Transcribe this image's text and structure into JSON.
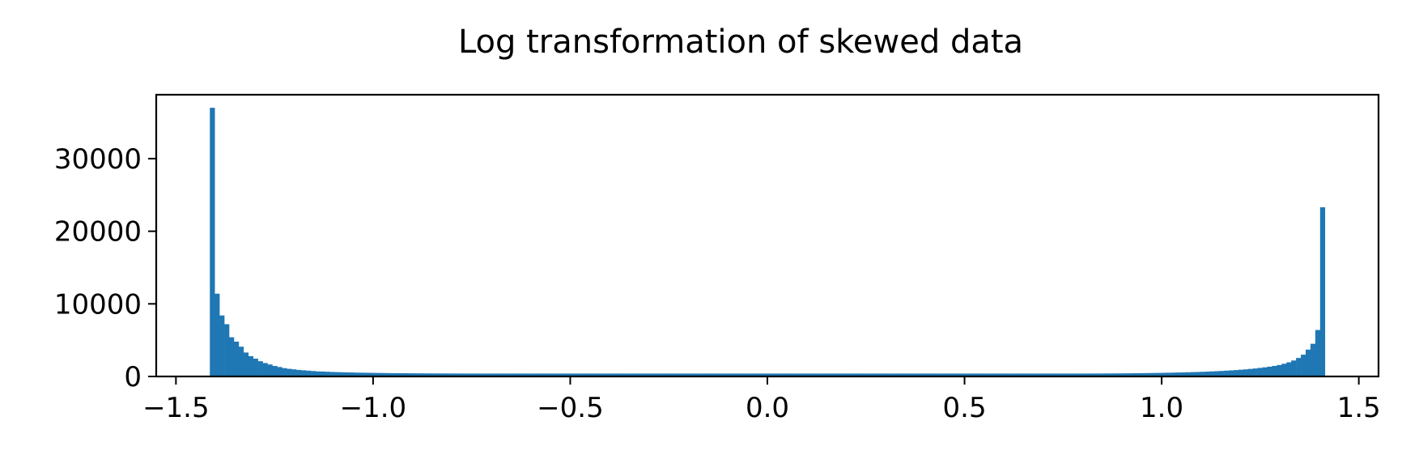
{
  "chart_data": {
    "type": "bar",
    "title": "Log transformation of skewed data",
    "xlabel": "",
    "ylabel": "",
    "xlim": [
      -1.55,
      1.55
    ],
    "ylim": [
      0,
      38800
    ],
    "xticks": [
      -1.5,
      -1.0,
      -0.5,
      0.0,
      0.5,
      1.0,
      1.5
    ],
    "xtick_labels": [
      "−1.5",
      "−1.0",
      "−0.5",
      "0.0",
      "0.5",
      "1.0",
      "1.5"
    ],
    "yticks": [
      0,
      10000,
      20000,
      30000
    ],
    "ytick_labels": [
      "0",
      "10000",
      "20000",
      "30000"
    ],
    "grid": false,
    "bar_color": "#1f77b4",
    "series": [
      {
        "bin_start": -1.414,
        "bin_end": 1.414,
        "values": [
          37000,
          11400,
          8400,
          7200,
          5400,
          4800,
          4100,
          3300,
          2800,
          2450,
          2100,
          1850,
          1650,
          1450,
          1300,
          1150,
          1050,
          980,
          900,
          850,
          800,
          750,
          700,
          680,
          650,
          620,
          600,
          580,
          560,
          550,
          530,
          520,
          510,
          500,
          490,
          480,
          470,
          460,
          455,
          450,
          445,
          440,
          435,
          430,
          425,
          420,
          418,
          415,
          412,
          410,
          408,
          406,
          404,
          402,
          400,
          400,
          400,
          400,
          400,
          400,
          400,
          400,
          400,
          400,
          400,
          400,
          400,
          400,
          400,
          400,
          400,
          400,
          400,
          400,
          400,
          400,
          400,
          400,
          400,
          400,
          400,
          400,
          400,
          400,
          400,
          400,
          400,
          400,
          400,
          400,
          400,
          400,
          400,
          400,
          400,
          400,
          400,
          400,
          400,
          400,
          400,
          400,
          400,
          400,
          400,
          400,
          400,
          400,
          400,
          400,
          400,
          400,
          400,
          400,
          400,
          400,
          400,
          400,
          400,
          400,
          400,
          400,
          400,
          400,
          400,
          400,
          400,
          400,
          400,
          400,
          400,
          400,
          400,
          400,
          400,
          400,
          400,
          400,
          400,
          400,
          400,
          400,
          400,
          400,
          400,
          400,
          400,
          400,
          400,
          400,
          400,
          400,
          400,
          400,
          400,
          400,
          400,
          400,
          400,
          400,
          400,
          400,
          400,
          400,
          400,
          400,
          400,
          400,
          400,
          400,
          400,
          400,
          400,
          400,
          400,
          400,
          400,
          400,
          400,
          400,
          400,
          402,
          404,
          406,
          408,
          410,
          414,
          418,
          422,
          426,
          432,
          438,
          445,
          452,
          460,
          470,
          480,
          490,
          500,
          515,
          530,
          545,
          560,
          580,
          600,
          620,
          645,
          670,
          700,
          730,
          760,
          800,
          840,
          880,
          930,
          980,
          1040,
          1100,
          1180,
          1260,
          1350,
          1450,
          1580,
          1750,
          1950,
          2200,
          2550,
          3000,
          3700,
          4500,
          6400,
          23300
        ]
      }
    ]
  }
}
